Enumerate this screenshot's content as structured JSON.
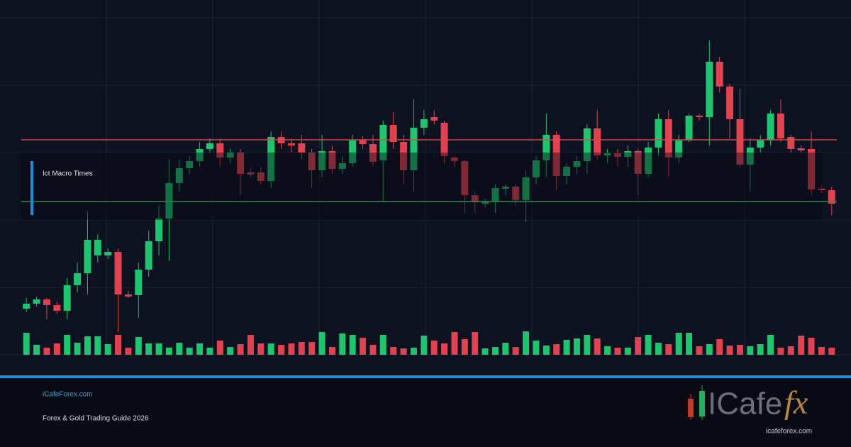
{
  "chart_data": {
    "type": "candlestick",
    "ylim": [
      0,
      475
    ],
    "open": [
      65,
      72,
      78,
      70,
      62,
      98,
      115,
      140,
      140,
      145,
      85,
      84,
      120,
      160,
      192,
      242,
      263,
      273,
      290,
      298,
      278,
      285,
      257,
      257,
      245,
      307,
      298,
      298,
      285,
      260,
      287,
      262,
      270,
      302,
      297,
      274,
      324,
      300,
      260,
      320,
      335,
      327,
      278,
      273,
      225,
      213,
      216,
      234,
      237,
      218,
      250,
      274,
      310,
      252,
      265,
      273,
      319,
      281,
      284,
      279,
      287,
      255,
      292,
      332,
      278,
      302,
      337,
      335,
      413,
      378,
      332,
      268,
      292,
      302,
      340,
      307,
      291,
      290,
      234,
      232
    ],
    "high": [
      80,
      82,
      80,
      75,
      108,
      130,
      202,
      170,
      150,
      150,
      90,
      130,
      175,
      210,
      275,
      275,
      280,
      300,
      305,
      305,
      290,
      290,
      262,
      265,
      315,
      315,
      305,
      310,
      290,
      310,
      295,
      280,
      310,
      308,
      310,
      330,
      342,
      310,
      360,
      345,
      345,
      330,
      280,
      275,
      230,
      220,
      240,
      240,
      240,
      260,
      280,
      340,
      315,
      270,
      280,
      325,
      345,
      290,
      290,
      295,
      290,
      300,
      340,
      345,
      310,
      340,
      340,
      443,
      420,
      382,
      375,
      305,
      310,
      345,
      360,
      310,
      295,
      315,
      238,
      237
    ],
    "low": [
      60,
      68,
      50,
      58,
      50,
      88,
      85,
      130,
      135,
      32,
      80,
      52,
      110,
      140,
      132,
      230,
      255,
      265,
      285,
      265,
      270,
      225,
      250,
      240,
      235,
      290,
      285,
      275,
      235,
      250,
      255,
      255,
      265,
      290,
      265,
      215,
      290,
      240,
      230,
      310,
      325,
      270,
      265,
      200,
      200,
      208,
      200,
      225,
      210,
      188,
      240,
      250,
      232,
      240,
      255,
      255,
      275,
      270,
      265,
      265,
      225,
      250,
      280,
      250,
      270,
      300,
      330,
      295,
      370,
      305,
      265,
      230,
      285,
      295,
      300,
      285,
      285,
      225,
      228,
      197
    ],
    "close": [
      72,
      78,
      70,
      62,
      98,
      115,
      162,
      162,
      145,
      85,
      82,
      120,
      160,
      192,
      242,
      263,
      273,
      290,
      298,
      278,
      285,
      255,
      254,
      245,
      307,
      298,
      295,
      285,
      260,
      287,
      262,
      270,
      302,
      297,
      272,
      324,
      300,
      260,
      320,
      332,
      330,
      280,
      273,
      225,
      215,
      216,
      235,
      237,
      218,
      250,
      274,
      310,
      252,
      265,
      273,
      319,
      281,
      284,
      279,
      287,
      255,
      292,
      332,
      278,
      302,
      337,
      335,
      413,
      378,
      332,
      268,
      292,
      302,
      340,
      305,
      290,
      288,
      233,
      232,
      213
    ],
    "volume": [
      31,
      14,
      10,
      16,
      28,
      17,
      26,
      26,
      15,
      28,
      10,
      25,
      16,
      16,
      10,
      17,
      10,
      16,
      10,
      20,
      11,
      15,
      28,
      16,
      16,
      14,
      16,
      18,
      18,
      32,
      11,
      30,
      28,
      24,
      14,
      28,
      11,
      9,
      10,
      27,
      20,
      16,
      32,
      22,
      32,
      9,
      11,
      17,
      11,
      33,
      20,
      13,
      15,
      21,
      23,
      28,
      23,
      12,
      10,
      10,
      25,
      28,
      17,
      15,
      31,
      31,
      12,
      15,
      22,
      13,
      14,
      12,
      15,
      28,
      10,
      12,
      27,
      24,
      11,
      10
    ],
    "volume_lim": [
      0,
      40
    ],
    "up_color": "#1ec46e",
    "down_color": "#e0434f",
    "levels": [
      {
        "value": 303,
        "color": "#d8474b"
      },
      {
        "value": 216,
        "color": "#2f8a4e"
      }
    ],
    "annotation": "Ict Macro Times"
  },
  "footer": {
    "site": "iCafeForex.com",
    "tagline": "Forex & Gold Trading Guide 2026",
    "logo": {
      "text": "ICafe",
      "accent": "fx",
      "url": "icafeforex.com"
    }
  }
}
